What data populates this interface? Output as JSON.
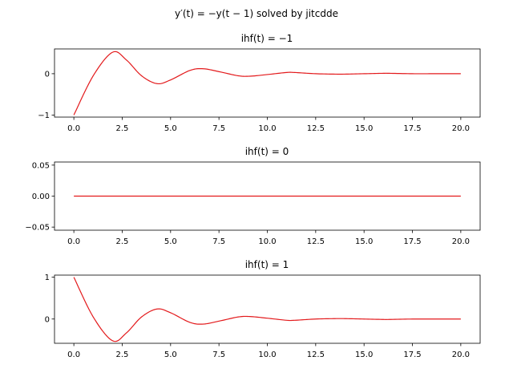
{
  "figure": {
    "suptitle": "y′(t) = −y(t − 1) solved by jitcdde",
    "line_color": "#e31a1c"
  },
  "chart_data": [
    {
      "type": "line",
      "title": "ihf(t) = −1",
      "xlabel": "",
      "ylabel": "",
      "xlim": [
        -1,
        21
      ],
      "ylim": [
        -1.05,
        0.6
      ],
      "xticks": [
        "0.0",
        "2.5",
        "5.0",
        "7.5",
        "10.0",
        "12.5",
        "15.0",
        "17.5",
        "20.0"
      ],
      "yticks": [
        "−1",
        "0"
      ],
      "grid": false,
      "series": [
        {
          "x": [
            0,
            1,
            2,
            2.7,
            3.5,
            4.3,
            5.0,
            6.0,
            6.7,
            7.6,
            8.5,
            9.1,
            10.0,
            11.0,
            11.4,
            12.5,
            13.5,
            14.0,
            15.0,
            16.0,
            16.3,
            17.5,
            18.5,
            20.0
          ],
          "y": [
            -1,
            -0.05,
            0.52,
            0.34,
            -0.05,
            -0.24,
            -0.15,
            0.08,
            0.12,
            0.04,
            -0.05,
            -0.06,
            -0.02,
            0.03,
            0.03,
            0.0,
            -0.01,
            -0.01,
            0.0,
            0.01,
            0.01,
            0.0,
            0.0,
            0.0
          ]
        }
      ]
    },
    {
      "type": "line",
      "title": "ihf(t) = 0",
      "xlabel": "",
      "ylabel": "",
      "xlim": [
        -1,
        21
      ],
      "ylim": [
        -0.055,
        0.055
      ],
      "xticks": [
        "0.0",
        "2.5",
        "5.0",
        "7.5",
        "10.0",
        "12.5",
        "15.0",
        "17.5",
        "20.0"
      ],
      "yticks": [
        "−0.05",
        "0.00",
        "0.05"
      ],
      "grid": false,
      "series": [
        {
          "x": [
            0,
            20
          ],
          "y": [
            0,
            0
          ]
        }
      ]
    },
    {
      "type": "line",
      "title": "ihf(t) = 1",
      "xlabel": "",
      "ylabel": "",
      "xlim": [
        -1,
        21
      ],
      "ylim": [
        -0.58,
        1.05
      ],
      "xticks": [
        "0.0",
        "2.5",
        "5.0",
        "7.5",
        "10.0",
        "12.5",
        "15.0",
        "17.5",
        "20.0"
      ],
      "yticks": [
        "0",
        "1"
      ],
      "grid": false,
      "series": [
        {
          "x": [
            0,
            1,
            2,
            2.7,
            3.5,
            4.3,
            5.0,
            6.0,
            6.7,
            7.6,
            8.5,
            9.1,
            10.0,
            11.0,
            11.4,
            12.5,
            13.5,
            14.0,
            15.0,
            16.0,
            16.3,
            17.5,
            18.5,
            20.0
          ],
          "y": [
            1,
            0.05,
            -0.52,
            -0.34,
            0.05,
            0.24,
            0.15,
            -0.08,
            -0.12,
            -0.04,
            0.05,
            0.06,
            0.02,
            -0.03,
            -0.03,
            0.0,
            0.01,
            0.01,
            0.0,
            -0.01,
            -0.01,
            0.0,
            0.0,
            0.0
          ]
        }
      ]
    }
  ]
}
